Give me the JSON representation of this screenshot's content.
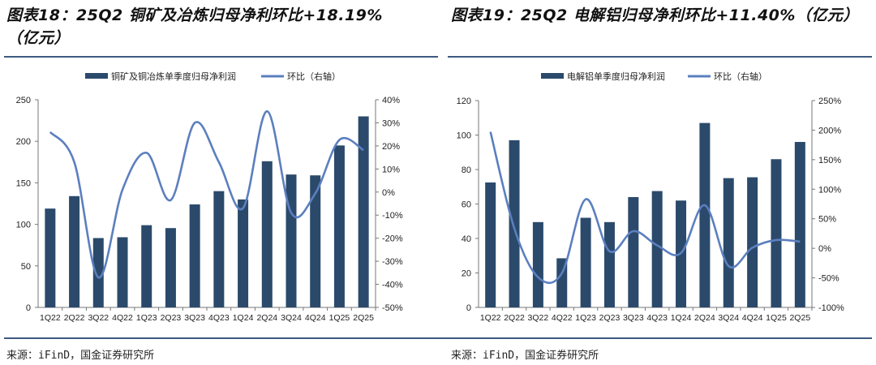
{
  "charts_meta": [
    {
      "title": "图表18：25Q2 铜矿及冶炼归母净利环比+18.19%（亿元）",
      "source": "来源：iFinD，国金证券研究所"
    },
    {
      "title": "图表19：25Q2 电解铝归母净利环比+11.40%（亿元）",
      "source": "来源：iFinD，国金证券研究所"
    }
  ],
  "colors": {
    "bar": "#2b4a6b",
    "line": "#5b7fbf",
    "rule": "#3d5a80"
  },
  "chart_data": [
    {
      "type": "bar+line",
      "categories": [
        "1Q22",
        "2Q22",
        "3Q22",
        "4Q22",
        "1Q23",
        "2Q23",
        "3Q23",
        "4Q23",
        "1Q24",
        "2Q24",
        "3Q24",
        "4Q24",
        "1Q25",
        "2Q25"
      ],
      "series": [
        {
          "name": "铜矿及铜冶炼单季度归母净利润",
          "type": "bar",
          "axis": "left",
          "values": [
            119,
            134,
            83.5,
            84.5,
            99,
            95.5,
            124,
            140,
            130,
            176,
            160,
            159,
            195,
            230
          ]
        },
        {
          "name": "环比（右轴）",
          "type": "line",
          "axis": "right",
          "values": [
            26,
            13,
            -37,
            1,
            17,
            -3.5,
            30,
            13,
            -7,
            35,
            -9,
            -0.6,
            22.6,
            18.19
          ]
        }
      ],
      "ylim_left": [
        0,
        250
      ],
      "yticks_left": [
        "0",
        "50",
        "100",
        "150",
        "200",
        "250"
      ],
      "ylim_right": [
        -50,
        40
      ],
      "yticks_right": [
        "-50%",
        "-40%",
        "-30%",
        "-20%",
        "-10%",
        "0%",
        "10%",
        "20%",
        "30%",
        "40%"
      ],
      "legend": "top",
      "grid": false
    },
    {
      "type": "bar+line",
      "categories": [
        "1Q22",
        "2Q22",
        "3Q22",
        "4Q22",
        "1Q23",
        "2Q23",
        "3Q23",
        "4Q23",
        "1Q24",
        "2Q24",
        "3Q24",
        "4Q24",
        "1Q25",
        "2Q25"
      ],
      "series": [
        {
          "name": "电解铝单季度归母净利润",
          "type": "bar",
          "axis": "left",
          "values": [
            72.5,
            97,
            49.5,
            28.5,
            52,
            49.5,
            64,
            67.5,
            62,
            107,
            75,
            75.5,
            86,
            96
          ]
        },
        {
          "name": "环比（右轴）",
          "type": "line",
          "axis": "right",
          "values": [
            197,
            34,
            -49,
            -42,
            83,
            -5,
            29,
            5,
            -8,
            73,
            -30,
            1,
            14,
            11.4
          ]
        }
      ],
      "ylim_left": [
        0,
        120
      ],
      "yticks_left": [
        "0",
        "20",
        "40",
        "60",
        "80",
        "100",
        "120"
      ],
      "ylim_right": [
        -100,
        250
      ],
      "yticks_right": [
        "-100%",
        "-50%",
        "0%",
        "50%",
        "100%",
        "150%",
        "200%",
        "250%"
      ],
      "legend": "top",
      "grid": false
    }
  ]
}
